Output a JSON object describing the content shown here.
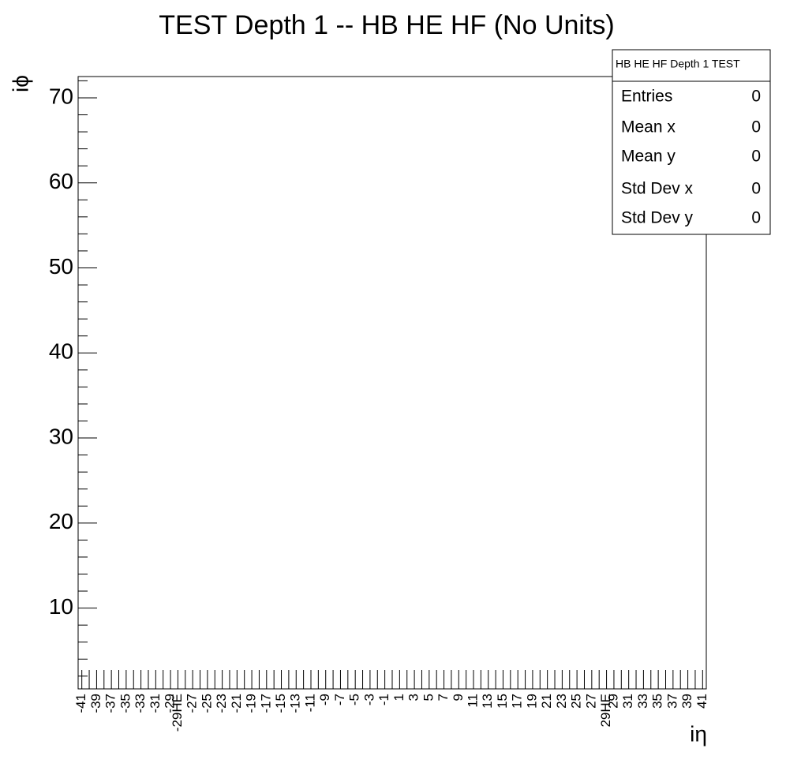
{
  "chart_data": {
    "type": "heatmap",
    "title": "TEST Depth 1 -- HB HE HF (No Units)",
    "x_label": "iη",
    "y_label": "iϕ",
    "categories": [
      "-41",
      null,
      "-39",
      null,
      "-37",
      null,
      "-35",
      null,
      "-33",
      null,
      "-31",
      null,
      "-29",
      "-29HE",
      null,
      "-27",
      null,
      "-25",
      null,
      "-23",
      null,
      "-21",
      null,
      "-19",
      null,
      "-17",
      null,
      "-15",
      null,
      "-13",
      null,
      "-11",
      null,
      "-9",
      null,
      "-7",
      null,
      "-5",
      null,
      "-3",
      null,
      "-1",
      null,
      "1",
      null,
      "3",
      null,
      "5",
      null,
      "7",
      null,
      "9",
      null,
      "11",
      null,
      "13",
      null,
      "15",
      null,
      "17",
      null,
      "19",
      null,
      "21",
      null,
      "23",
      null,
      "25",
      null,
      "27",
      null,
      "29HE",
      "29",
      null,
      "31",
      null,
      "33",
      null,
      "35",
      null,
      "37",
      null,
      "39",
      null,
      "41"
    ],
    "ylim": [
      0.5,
      72.5
    ],
    "yticks": [
      10,
      20,
      30,
      40,
      50,
      60,
      70
    ],
    "yminorticks": [
      2,
      4,
      6,
      8,
      12,
      14,
      16,
      18,
      22,
      24,
      26,
      28,
      32,
      34,
      36,
      38,
      42,
      44,
      46,
      48,
      52,
      54,
      56,
      58,
      62,
      64,
      66,
      68,
      72
    ],
    "stats": {
      "title": "HB HE HF Depth 1 TEST",
      "rows": [
        {
          "label": "Entries",
          "value": 0
        },
        {
          "label": "Mean x",
          "value": 0
        },
        {
          "label": "Mean y",
          "value": 0
        },
        {
          "label": "Std Dev x",
          "value": 0
        },
        {
          "label": "Std Dev y",
          "value": 0
        }
      ]
    }
  }
}
